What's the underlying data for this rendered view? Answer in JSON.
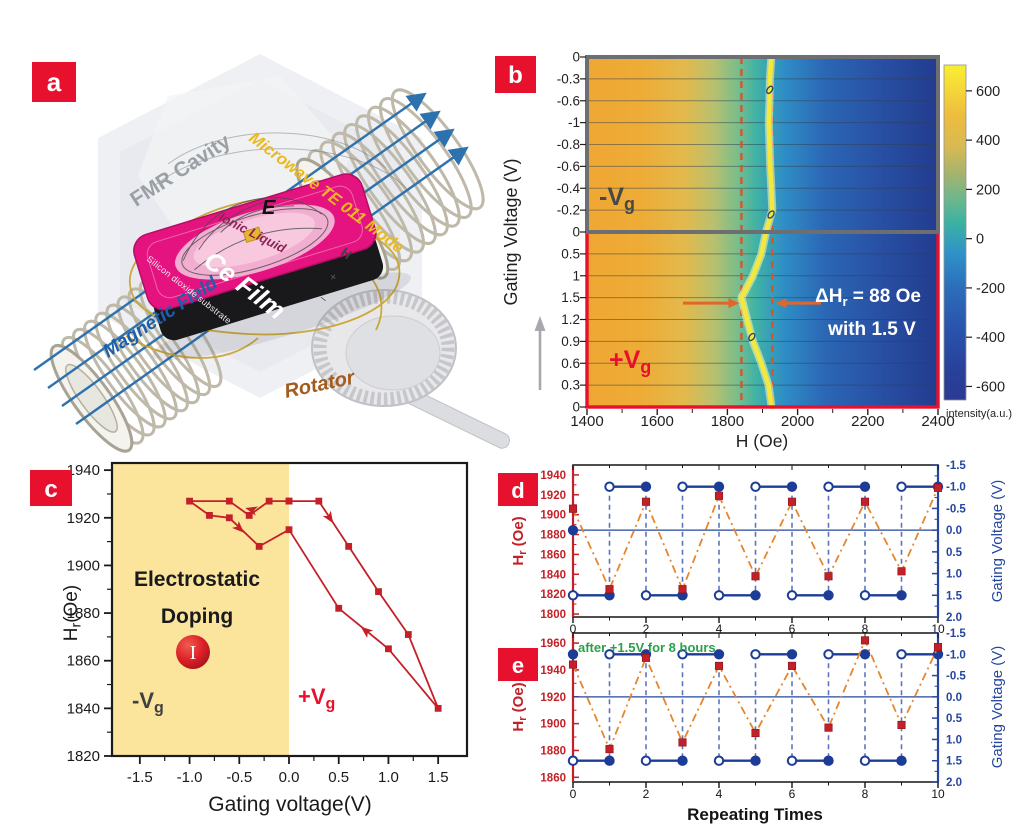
{
  "panels": {
    "a": "a",
    "b": "b",
    "c": "c",
    "d": "d",
    "e": "e"
  },
  "colors": {
    "accent_red": "#e8112d",
    "series_red": "#c32027",
    "series_blue": "#1c3c97",
    "axis_blue": "#2446a0",
    "dashdot_orange": "#e5862d",
    "dashed_vertical_blue": "#5b74bd",
    "resonance_yellow": "#f2e93c",
    "dashed_marker_red": "#d9542b",
    "arrow_orange": "#e2662c",
    "shade_yellow": "#fbe49c",
    "annotation_green": "#2ba04a",
    "neg_label_gray": "#47484a"
  },
  "panel_a": {
    "label": "a",
    "labels": {
      "fmr_cavity": "FMR Cavity",
      "microwave_mode": "Microwave TE 011 Mode",
      "magnetic_field": "Magnetic Field",
      "rotator": "Rotator",
      "e_field": "E",
      "ionic_liquid": "Ionic Liquid",
      "film": "Ce Film",
      "substrate": "Silicon dioxide substrate",
      "h_axis": "H",
      "plus": "+",
      "minus": "−"
    }
  },
  "chart_data": [
    {
      "id": "panel-b",
      "type": "heatmap",
      "xlabel": "H (Oe)",
      "ylabel": "Gating Voltage (V)",
      "xlim": [
        1400,
        2400
      ],
      "x_ticks": [
        "1400",
        "1600",
        "1800",
        "2000",
        "2200",
        "2400"
      ],
      "y_tick_labels": [
        "0",
        "-0.3",
        "-0.6",
        "-1",
        "-0.8",
        "-0.6",
        "-0.4",
        "-0.2",
        "0",
        "0.5",
        "1",
        "1.5",
        "1.2",
        "0.9",
        "0.6",
        "0.3",
        "0"
      ],
      "resonance_H_by_row": [
        1925,
        1921,
        1920,
        1918,
        1920,
        1922,
        1925,
        1928,
        1910,
        1897,
        1873,
        1840,
        1856,
        1873,
        1897,
        1917,
        1926
      ],
      "marker_rows": [
        1.5,
        7.2,
        12.8
      ],
      "dashed_H": [
        1840,
        1928
      ],
      "annotation": {
        "pre": "ΔH",
        "sub": "r",
        "post": " = 88 Oe",
        "line2": "with 1.5 V"
      },
      "neg_region": {
        "pre": "-V",
        "sub": "g"
      },
      "pos_region": {
        "pre": "+V",
        "sub": "g"
      },
      "colorbar": {
        "label": "intensity(a.u.)",
        "ticks": [
          "600",
          "400",
          "200",
          "0",
          "-200",
          "-400",
          "-600"
        ],
        "lim": [
          705,
          -655
        ]
      }
    },
    {
      "id": "panel-c",
      "type": "line",
      "xlabel": "Gating voltage(V)",
      "ylabel": {
        "pre": "H",
        "sub": "r",
        "post": "(Oe)"
      },
      "xlim": [
        -1.78,
        1.79
      ],
      "ylim": [
        1820,
        1943
      ],
      "x_ticks": [
        "-1.5",
        "-1.0",
        "-0.5",
        "0.0",
        "0.5",
        "1.0",
        "1.5"
      ],
      "x_tick_values": [
        -1.5,
        -1,
        -0.5,
        0,
        0.5,
        1,
        1.5
      ],
      "y_ticks": [
        1820,
        1840,
        1860,
        1880,
        1900,
        1920,
        1940
      ],
      "points": [
        [
          0,
          1927
        ],
        [
          0.3,
          1927
        ],
        [
          0.6,
          1908
        ],
        [
          0.9,
          1889
        ],
        [
          1.2,
          1871
        ],
        [
          1.5,
          1840
        ],
        [
          1,
          1865
        ],
        [
          0.5,
          1882
        ],
        [
          0,
          1915
        ],
        [
          -0.3,
          1908
        ],
        [
          -0.6,
          1920
        ],
        [
          -0.8,
          1921
        ],
        [
          -1,
          1927
        ],
        [
          -0.6,
          1927
        ],
        [
          -0.4,
          1921
        ],
        [
          -0.2,
          1927
        ],
        [
          0,
          1927
        ]
      ],
      "arrows": [
        {
          "x": 0.44,
          "y": 1918,
          "angle": 57
        },
        {
          "x": 0.73,
          "y": 1874,
          "angle": 219
        },
        {
          "x": -0.46,
          "y": 1914,
          "angle": 44
        },
        {
          "x": -0.43,
          "y": 1924,
          "angle": 195
        }
      ],
      "shade_to": 0,
      "shade_color": "#fbe49c",
      "labels": {
        "line1": "Electrostatic",
        "line2": "Doping",
        "circle": "I",
        "neg": {
          "pre": "-V",
          "sub": "g"
        },
        "pos": {
          "pre": "+V",
          "sub": "g"
        }
      }
    },
    {
      "id": "panel-d",
      "type": "dual-axis-line",
      "x": [
        0,
        1,
        2,
        3,
        4,
        5,
        6,
        7,
        8,
        9,
        10
      ],
      "x_major_ticks": [
        0,
        2,
        4,
        6,
        8,
        10
      ],
      "hr_series": {
        "name": "Hr (Oe)",
        "values": [
          1906,
          1825,
          1913,
          1825,
          1919,
          1838,
          1913,
          1838,
          1913,
          1843,
          1927
        ]
      },
      "gate_series": {
        "name": "Gating Voltage (V)",
        "high": -1,
        "low": 1.5,
        "zero_line": 0,
        "extra_point": {
          "x": 0,
          "v": 0
        }
      },
      "left_axis": {
        "label": {
          "pre": "H",
          "sub": "r",
          "post": " (Oe)"
        },
        "ticks": [
          1800,
          1820,
          1840,
          1860,
          1880,
          1900,
          1920,
          1940
        ],
        "top_value": 1950,
        "bottom_value": 1797
      },
      "right_axis": {
        "label": "Gating Voltage (V)",
        "ticks": [
          -1.5,
          -1,
          -0.5,
          0,
          0.5,
          1,
          1.5,
          2
        ],
        "lim": [
          -1.5,
          2
        ]
      }
    },
    {
      "id": "panel-e",
      "type": "dual-axis-line",
      "x": [
        0,
        1,
        2,
        3,
        4,
        5,
        6,
        7,
        8,
        9,
        10
      ],
      "x_major_ticks": [
        0,
        2,
        4,
        6,
        8,
        10
      ],
      "xlabel": "Repeating Times",
      "annotation": "after +1.5V for 8 hours",
      "hr_series": {
        "name": "Hr (Oe)",
        "values": [
          1944,
          1881,
          1949,
          1886,
          1943,
          1893,
          1943,
          1897,
          1962,
          1899,
          1957
        ]
      },
      "gate_series": {
        "name": "Gating Voltage (V)",
        "high": -1,
        "low": 1.5,
        "zero_line": 0,
        "extra_point": {
          "x": 0,
          "v": -1
        }
      },
      "left_axis": {
        "label": {
          "pre": "H",
          "sub": "r",
          "post": " (Oe)"
        },
        "ticks": [
          1860,
          1880,
          1900,
          1920,
          1940,
          1960
        ],
        "top_value": 1967.5,
        "bottom_value": 1856.5
      },
      "right_axis": {
        "label": "Gating Voltage (V)",
        "ticks": [
          -1.5,
          -1,
          -0.5,
          0,
          0.5,
          1,
          1.5,
          2
        ],
        "lim": [
          -1.5,
          2
        ]
      }
    }
  ]
}
